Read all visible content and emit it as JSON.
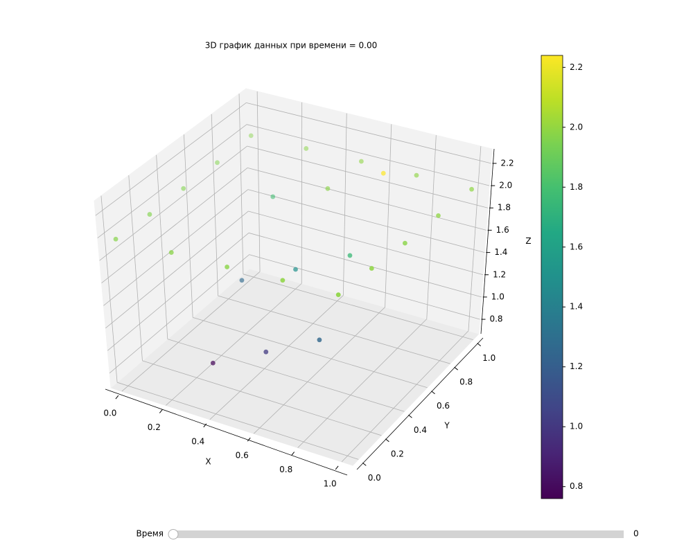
{
  "chart_data": {
    "type": "scatter3d",
    "title": "3D график данных при времени = 0.00",
    "xlabel": "X",
    "ylabel": "Y",
    "zlabel": "Z",
    "cmap": "viridis",
    "x": [
      0,
      0.25,
      0.5,
      0.75,
      1,
      0,
      0.25,
      0.5,
      0.75,
      1,
      0,
      0.25,
      0.5,
      0.75,
      1,
      0,
      0.25,
      0.5,
      0.75,
      1,
      0,
      0.25,
      0.5,
      0.75,
      1
    ],
    "y": [
      0,
      0,
      0,
      0,
      0,
      0.25,
      0.25,
      0.25,
      0.25,
      0.25,
      0.5,
      0.5,
      0.5,
      0.5,
      0.5,
      0.75,
      0.75,
      0.75,
      0.75,
      0.75,
      1,
      1,
      1,
      1,
      1
    ],
    "z": [
      1.97,
      1.98,
      1.98,
      1.99,
      1.99,
      1.96,
      0.78,
      1.02,
      1.26,
      1.99,
      1.96,
      1.27,
      1.5,
      1.75,
      1.98,
      1.96,
      1.78,
      1.98,
      2.24,
      1.99,
      1.97,
      1.98,
      1.99,
      1.99,
      1.99
    ],
    "xlim": [
      -0.05,
      1.05
    ],
    "ylim": [
      -0.05,
      1.05
    ],
    "zlim": [
      0.67,
      2.33
    ],
    "xticks": [
      {
        "value": 0,
        "label": "0.0"
      },
      0.2,
      0.4,
      0.6,
      0.8,
      {
        "value": 1,
        "label": "1.0"
      }
    ],
    "yticks": [
      {
        "value": 0,
        "label": "0.0"
      },
      0.2,
      0.4,
      0.6,
      0.8,
      {
        "value": 1,
        "label": "1.0"
      }
    ],
    "zticks": [
      0.8,
      {
        "value": 1,
        "label": "1.0"
      },
      1.2,
      1.4,
      1.6,
      1.8,
      {
        "value": 2,
        "label": "2.0"
      },
      2.2
    ],
    "grid": true,
    "colorbar": {
      "clim": [
        0.76,
        2.24
      ],
      "ticks": [
        0.8,
        {
          "value": 1,
          "label": "1.0"
        },
        1.2,
        1.4,
        1.6,
        1.8,
        {
          "value": 2,
          "label": "2.0"
        },
        2.2
      ]
    }
  },
  "slider": {
    "label": "Время",
    "value": 0
  }
}
